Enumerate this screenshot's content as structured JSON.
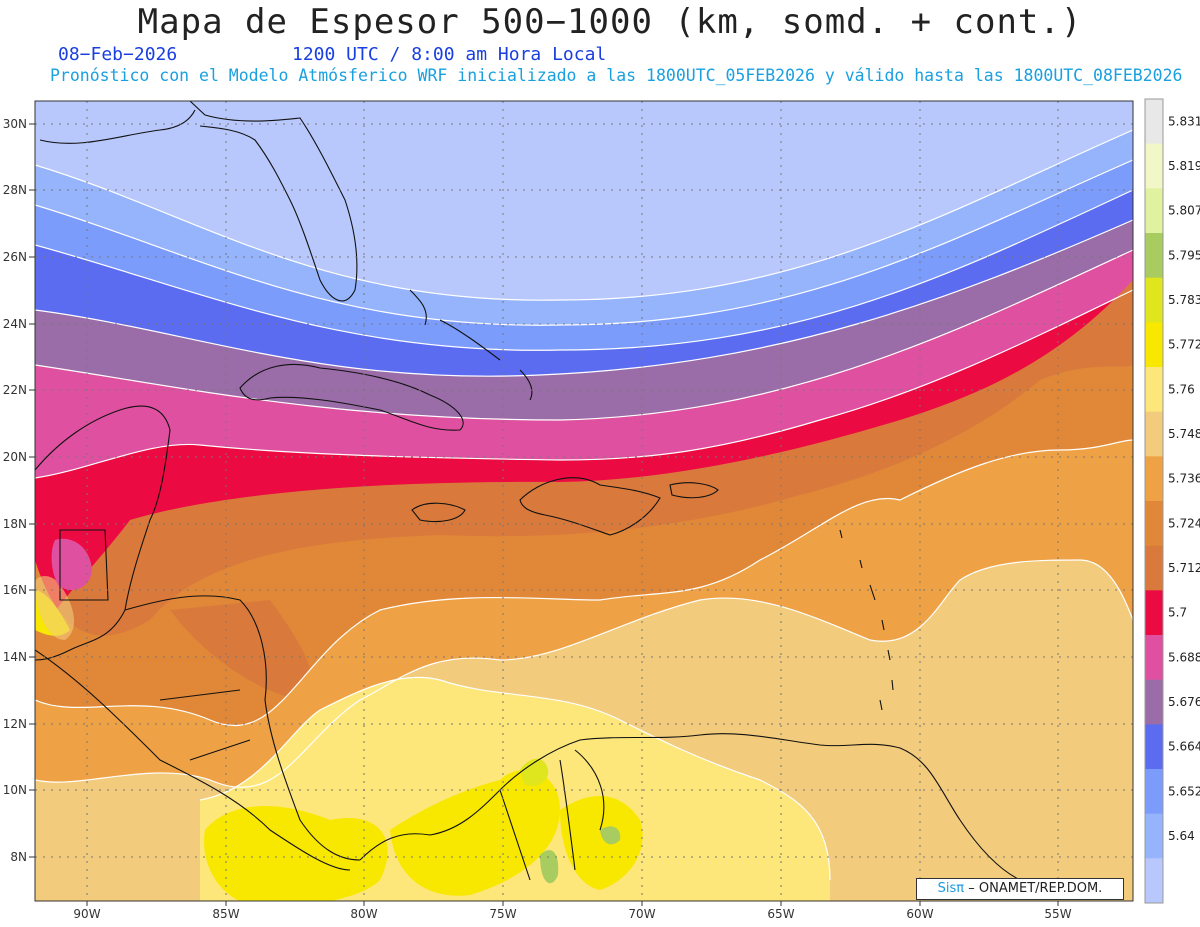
{
  "title": "Mapa de Espesor 500−1000 (km, somd. + cont.)",
  "date": "08−Feb−2026",
  "time": "1200 UTC / 8:00 am Hora Local",
  "forecast": "Pronóstico con el Modelo Atmósferico WRF inicializado a las 1800UTC_05FEB2026 y válido hasta las  1800UTC_08FEB2026",
  "credit": {
    "brand": "Sisπ",
    "org": "– ONAMET/REP.DOM."
  },
  "lon_labels": [
    "90W",
    "85W",
    "80W",
    "75W",
    "70W",
    "65W",
    "60W",
    "55W"
  ],
  "lat_labels": [
    "30N",
    "28N",
    "26N",
    "24N",
    "22N",
    "20N",
    "18N",
    "16N",
    "14N",
    "12N",
    "10N",
    "8N"
  ],
  "colorbar": {
    "labels": [
      "5.831",
      "5.819",
      "5.807",
      "5.795",
      "5.783",
      "5.772",
      "5.76",
      "5.748",
      "5.736",
      "5.724",
      "5.712",
      "5.7",
      "5.688",
      "5.676",
      "5.664",
      "5.652",
      "5.64"
    ],
    "colors": [
      "#e8e8e8",
      "#f2f7c8",
      "#e0f2a0",
      "#a8cc60",
      "#dfe61e",
      "#f8e800",
      "#fde67a",
      "#f2cb7c",
      "#eea245",
      "#e08838",
      "#d97a3c",
      "#ec0a42",
      "#e050a0",
      "#9a6ca8",
      "#5c6cf0",
      "#7c9cfc",
      "#96b4fc",
      "#b8c8fc"
    ]
  }
}
